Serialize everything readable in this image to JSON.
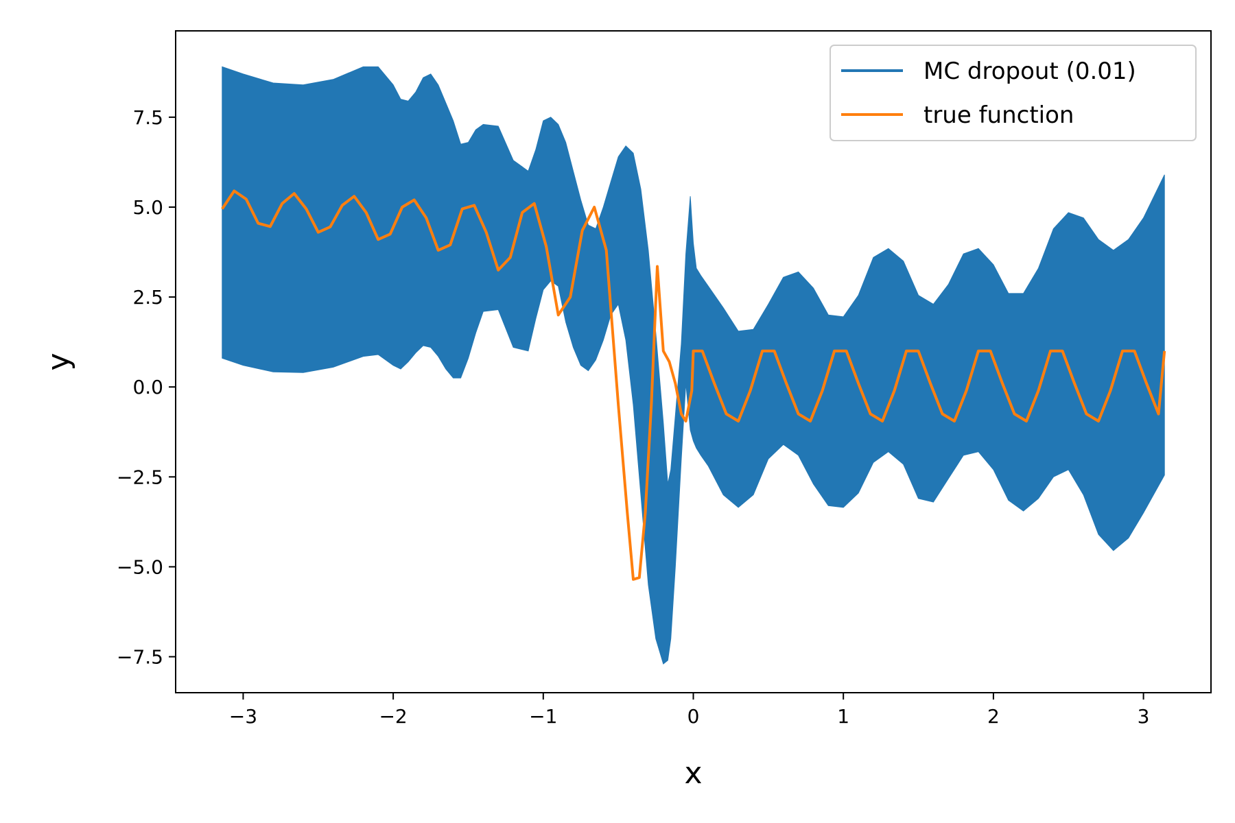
{
  "chart_data": {
    "type": "line",
    "title": "",
    "xlabel": "x",
    "ylabel": "y",
    "xlim": [
      -3.45,
      3.45
    ],
    "ylim": [
      -8.5,
      9.9
    ],
    "xticks": [
      -3,
      -2,
      -1,
      0,
      1,
      2,
      3
    ],
    "xtick_labels": [
      "−3",
      "−2",
      "−1",
      "0",
      "1",
      "2",
      "3"
    ],
    "yticks": [
      -7.5,
      -5.0,
      -2.5,
      0.0,
      2.5,
      5.0,
      7.5
    ],
    "ytick_labels": [
      "−7.5",
      "−5.0",
      "−2.5",
      "0.0",
      "2.5",
      "5.0",
      "7.5"
    ],
    "grid": false,
    "legend_position": "upper-right",
    "series": [
      {
        "name": "MC dropout (0.01)",
        "kind": "band",
        "color": "#2277b4",
        "x": [
          -3.14,
          -3.0,
          -2.8,
          -2.6,
          -2.4,
          -2.2,
          -2.1,
          -2.0,
          -1.95,
          -1.9,
          -1.85,
          -1.8,
          -1.75,
          -1.7,
          -1.65,
          -1.6,
          -1.55,
          -1.5,
          -1.45,
          -1.4,
          -1.3,
          -1.2,
          -1.1,
          -1.05,
          -1.0,
          -0.95,
          -0.9,
          -0.85,
          -0.8,
          -0.75,
          -0.7,
          -0.65,
          -0.6,
          -0.55,
          -0.5,
          -0.45,
          -0.4,
          -0.35,
          -0.3,
          -0.25,
          -0.2,
          -0.17,
          -0.15,
          -0.12,
          -0.08,
          -0.05,
          -0.02,
          0.0,
          0.02,
          0.05,
          0.1,
          0.2,
          0.3,
          0.4,
          0.5,
          0.6,
          0.7,
          0.8,
          0.9,
          1.0,
          1.1,
          1.2,
          1.3,
          1.4,
          1.5,
          1.6,
          1.7,
          1.8,
          1.9,
          2.0,
          2.1,
          2.2,
          2.3,
          2.4,
          2.5,
          2.6,
          2.7,
          2.8,
          2.9,
          3.0,
          3.14
        ],
        "upper": [
          8.9,
          8.7,
          8.45,
          8.4,
          8.55,
          8.9,
          8.9,
          8.4,
          8.0,
          7.95,
          8.2,
          8.6,
          8.7,
          8.4,
          7.9,
          7.4,
          6.75,
          6.8,
          7.15,
          7.3,
          7.25,
          6.3,
          6.0,
          6.6,
          7.4,
          7.5,
          7.3,
          6.8,
          6.0,
          5.2,
          4.5,
          4.4,
          5.0,
          5.7,
          6.4,
          6.7,
          6.5,
          5.5,
          3.8,
          1.5,
          -1.0,
          -2.7,
          -2.3,
          -0.8,
          1.2,
          3.7,
          5.3,
          4.0,
          3.3,
          3.1,
          2.8,
          2.2,
          1.55,
          1.6,
          2.3,
          3.05,
          3.2,
          2.75,
          2.0,
          1.95,
          2.55,
          3.6,
          3.85,
          3.5,
          2.55,
          2.3,
          2.85,
          3.7,
          3.85,
          3.4,
          2.6,
          2.6,
          3.3,
          4.4,
          4.85,
          4.7,
          4.1,
          3.8,
          4.1,
          4.7,
          5.9
        ],
        "lower": [
          0.8,
          0.6,
          0.42,
          0.4,
          0.55,
          0.85,
          0.9,
          0.6,
          0.5,
          0.7,
          0.95,
          1.15,
          1.1,
          0.85,
          0.5,
          0.25,
          0.25,
          0.8,
          1.5,
          2.1,
          2.15,
          1.1,
          1.0,
          1.9,
          2.7,
          2.95,
          2.8,
          1.8,
          1.1,
          0.6,
          0.45,
          0.75,
          1.3,
          2.0,
          2.3,
          1.3,
          -0.5,
          -3.0,
          -5.5,
          -7.0,
          -7.7,
          -7.6,
          -7.0,
          -5.0,
          -2.0,
          0.1,
          -1.2,
          -1.5,
          -1.7,
          -1.9,
          -2.2,
          -3.0,
          -3.35,
          -3.0,
          -2.0,
          -1.6,
          -1.9,
          -2.7,
          -3.3,
          -3.35,
          -2.95,
          -2.1,
          -1.8,
          -2.15,
          -3.1,
          -3.2,
          -2.55,
          -1.9,
          -1.8,
          -2.3,
          -3.15,
          -3.45,
          -3.1,
          -2.5,
          -2.3,
          -3.0,
          -4.1,
          -4.55,
          -4.2,
          -3.5,
          -2.45
        ]
      },
      {
        "name": "true function",
        "kind": "line",
        "color": "#ff7f0e",
        "x": [
          -3.14,
          -3.06,
          -2.98,
          -2.9,
          -2.82,
          -2.74,
          -2.66,
          -2.58,
          -2.5,
          -2.42,
          -2.34,
          -2.26,
          -2.18,
          -2.1,
          -2.02,
          -1.94,
          -1.86,
          -1.78,
          -1.7,
          -1.62,
          -1.54,
          -1.46,
          -1.38,
          -1.3,
          -1.22,
          -1.14,
          -1.06,
          -0.98,
          -0.9,
          -0.82,
          -0.74,
          -0.66,
          -0.58,
          -0.5,
          -0.44,
          -0.4,
          -0.36,
          -0.32,
          -0.28,
          -0.24,
          -0.2,
          -0.16,
          -0.12,
          -0.08,
          -0.05,
          -0.01,
          0.0,
          0.06,
          0.14,
          0.22,
          0.3,
          0.38,
          0.46,
          0.54,
          0.62,
          0.7,
          0.78,
          0.86,
          0.94,
          1.02,
          1.1,
          1.18,
          1.26,
          1.34,
          1.42,
          1.5,
          1.58,
          1.66,
          1.74,
          1.82,
          1.9,
          1.98,
          2.06,
          2.14,
          2.22,
          2.3,
          2.38,
          2.46,
          2.54,
          2.62,
          2.7,
          2.78,
          2.86,
          2.94,
          3.02,
          3.1,
          3.14
        ],
        "y": [
          4.95,
          5.45,
          5.22,
          4.55,
          4.46,
          5.1,
          5.38,
          4.95,
          4.3,
          4.45,
          5.05,
          5.3,
          4.85,
          4.1,
          4.25,
          5.0,
          5.2,
          4.7,
          3.8,
          3.95,
          4.95,
          5.05,
          4.3,
          3.25,
          3.6,
          4.85,
          5.1,
          3.9,
          2.0,
          2.5,
          4.35,
          5.0,
          3.8,
          -0.5,
          -3.5,
          -5.35,
          -5.3,
          -3.5,
          -0.5,
          3.35,
          1.0,
          0.7,
          0.1,
          -0.75,
          -0.95,
          -0.1,
          1.0,
          1.0,
          0.1,
          -0.75,
          -0.95,
          -0.1,
          1.0,
          1.0,
          0.1,
          -0.75,
          -0.95,
          -0.1,
          1.0,
          1.0,
          0.1,
          -0.75,
          -0.95,
          -0.1,
          1.0,
          1.0,
          0.1,
          -0.75,
          -0.95,
          -0.1,
          1.0,
          1.0,
          0.1,
          -0.75,
          -0.95,
          -0.1,
          1.0,
          1.0,
          0.1,
          -0.75,
          -0.95,
          -0.1,
          1.0,
          1.0,
          0.1,
          -0.75,
          1.0
        ]
      }
    ]
  }
}
